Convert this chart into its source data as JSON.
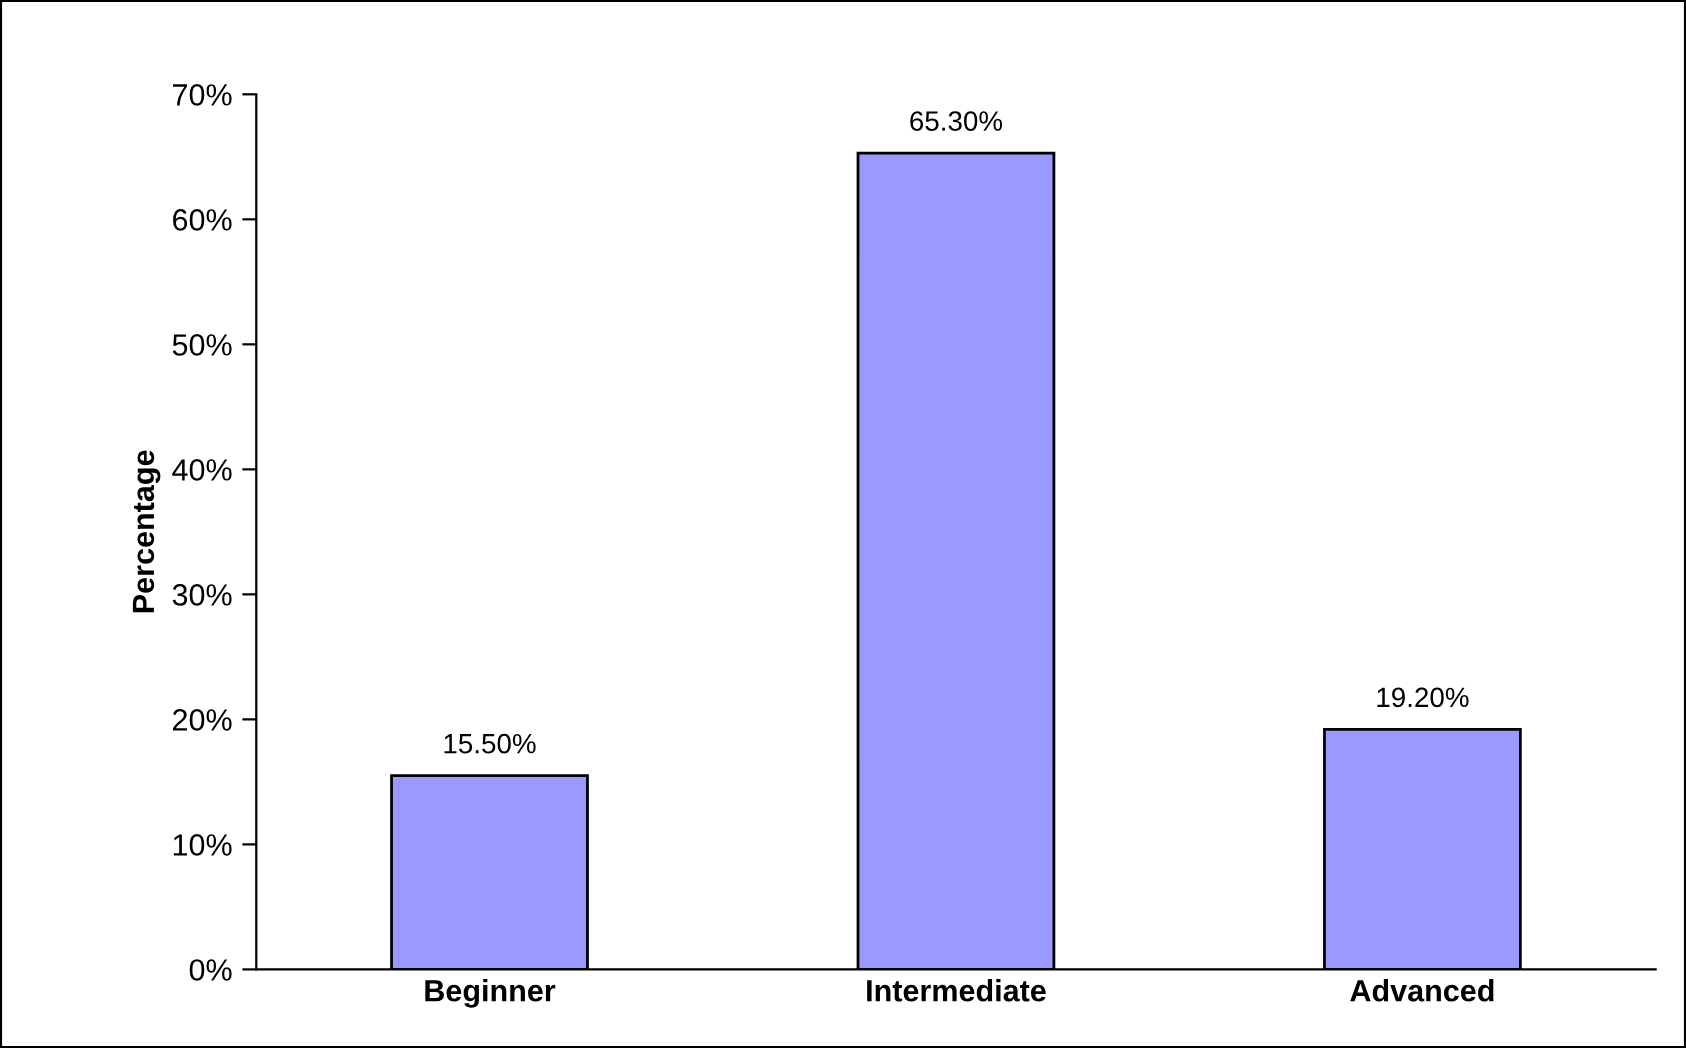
{
  "chart_data": {
    "type": "bar",
    "ylabel": "Percentage",
    "categories": [
      "Beginner",
      "Intermediate",
      "Advanced"
    ],
    "values": [
      15.5,
      65.3,
      19.2
    ],
    "color": "#9999ff",
    "value_labels": [
      "15.50%",
      "65.30%",
      "19.20%"
    ],
    "ylim": [
      0,
      70
    ],
    "yticks": [
      {
        "value": 0,
        "label": "0%"
      },
      {
        "value": 10,
        "label": "10%"
      },
      {
        "value": 20,
        "label": "20%"
      },
      {
        "value": 30,
        "label": "30%"
      },
      {
        "value": 40,
        "label": "40%"
      },
      {
        "value": 50,
        "label": "50%"
      },
      {
        "value": 60,
        "label": "60%"
      },
      {
        "value": 70,
        "label": "70%"
      }
    ],
    "grid": false,
    "legend": false
  }
}
